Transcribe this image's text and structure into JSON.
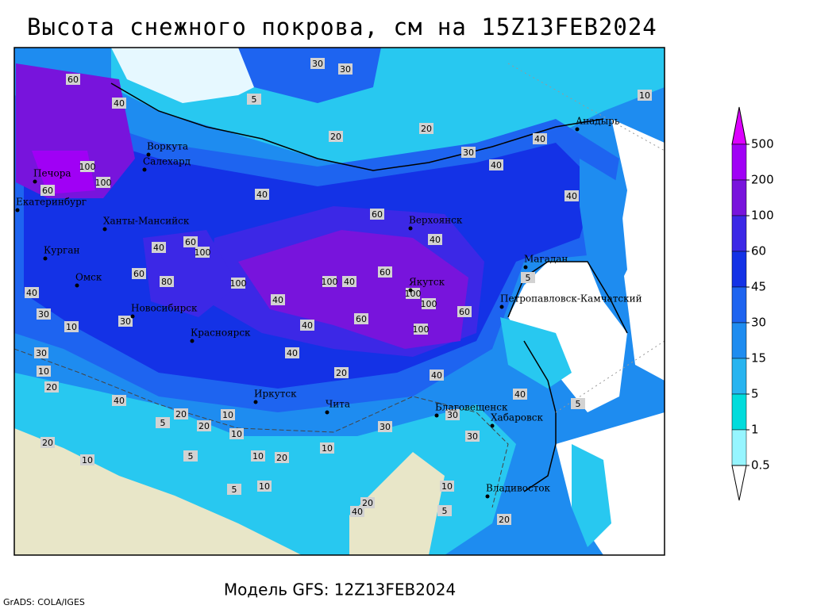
{
  "header": {
    "title": "Высота снежного покрова, см на 15Z13FEB2024"
  },
  "cities": [
    "Анадырь",
    "Воркута",
    "Салехард",
    "Печора",
    "Екатеринбург",
    "Ханты-Мансийск",
    "Верхоянск",
    "Курган",
    "Магадан",
    "Омск",
    "Якутск",
    "Петропавловск-Камчатский",
    "Новосибирск",
    "Красноярск",
    "Иркутск",
    "Чита",
    "Благовещенск",
    "Хабаровск",
    "Владивосток"
  ],
  "contour_labels": [
    30,
    30,
    20,
    20,
    10,
    5,
    60,
    40,
    100,
    60,
    100,
    40,
    40,
    30,
    40,
    40,
    60,
    40,
    60,
    40,
    100,
    60,
    80,
    100,
    100,
    40,
    60,
    100,
    100,
    60,
    100,
    40,
    30,
    60,
    40,
    30,
    10,
    30,
    10,
    20,
    40,
    40,
    20,
    30,
    5,
    20,
    10,
    20,
    10,
    5,
    10,
    20,
    10,
    20,
    5,
    30,
    40,
    30,
    10,
    5,
    40,
    20,
    10,
    40,
    10,
    5,
    40,
    20,
    5
  ],
  "legend": {
    "levels": [
      500,
      200,
      100,
      60,
      45,
      30,
      15,
      5,
      1,
      0.5
    ],
    "colors": [
      "#dc00ff",
      "#a000f5",
      "#7814dc",
      "#3c28e6",
      "#1432e6",
      "#1e64f0",
      "#1e8cf0",
      "#28b4f0",
      "#00dcdc",
      "#96f5ff",
      "#ffffff"
    ]
  },
  "footer": {
    "model": "Модель GFS: 12Z13FEB2024",
    "credit": "GrADS: COLA/IGES"
  }
}
